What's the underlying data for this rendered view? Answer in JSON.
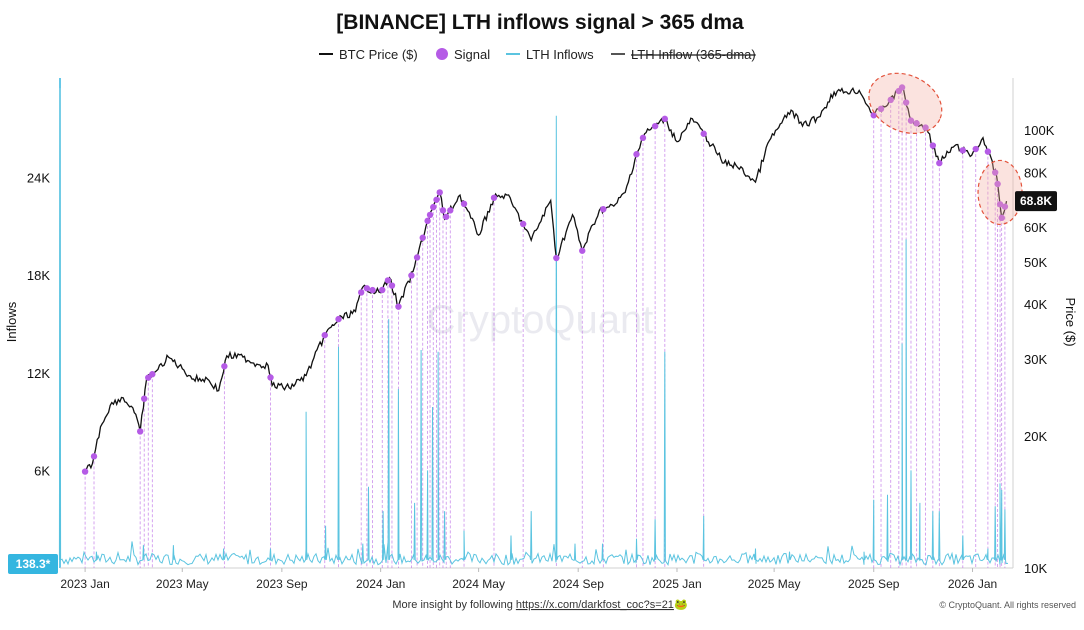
{
  "chart_data": {
    "type": "line",
    "title": "[BINANCE] LTH inflows signal > 365 dma",
    "legend": [
      {
        "name": "BTC Price ($)",
        "color": "#111111",
        "marker": "line"
      },
      {
        "name": "Signal",
        "color": "#b55be6",
        "marker": "dot"
      },
      {
        "name": "LTH Inflows",
        "color": "#5bc4e0",
        "marker": "line"
      },
      {
        "name": "LTH Inflow (365-dma)",
        "color": "#555555",
        "marker": "line",
        "hidden": true
      }
    ],
    "legend_position": "top-center",
    "x_ticks": [
      "2023 Jan",
      "2023 May",
      "2023 Sep",
      "2024 Jan",
      "2024 May",
      "2024 Sep",
      "2025 Jan",
      "2025 May",
      "2025 Sep",
      "2026 Jan"
    ],
    "x_range": [
      "2022-12-01",
      "2026-02-20"
    ],
    "y_left": {
      "label": "Inflows",
      "ticks": [
        "6K",
        "12K",
        "18K",
        "24K"
      ],
      "range": [
        0,
        30000
      ]
    },
    "y_right": {
      "label": "Price ($)",
      "scale": "log",
      "ticks": [
        "10K",
        "20K",
        "30K",
        "40K",
        "50K",
        "60K",
        "80K",
        "90K",
        "100K"
      ],
      "range": [
        10000,
        130000
      ]
    },
    "current_left_badge": "138.3*",
    "current_price_badge": "68.8K",
    "grid": false,
    "series": [
      {
        "name": "BTC Price ($)",
        "points": [
          [
            "2023-01-01",
            16600
          ],
          [
            "2023-01-10",
            17300
          ],
          [
            "2023-01-20",
            21000
          ],
          [
            "2023-02-01",
            23500
          ],
          [
            "2023-02-15",
            24500
          ],
          [
            "2023-03-01",
            23200
          ],
          [
            "2023-03-10",
            20500
          ],
          [
            "2023-03-18",
            27000
          ],
          [
            "2023-04-01",
            28400
          ],
          [
            "2023-04-14",
            30300
          ],
          [
            "2023-05-01",
            28500
          ],
          [
            "2023-05-15",
            27000
          ],
          [
            "2023-06-01",
            27000
          ],
          [
            "2023-06-15",
            25400
          ],
          [
            "2023-06-25",
            30500
          ],
          [
            "2023-07-15",
            30300
          ],
          [
            "2023-08-01",
            29200
          ],
          [
            "2023-08-15",
            29000
          ],
          [
            "2023-08-20",
            26100
          ],
          [
            "2023-09-10",
            25800
          ],
          [
            "2023-10-01",
            27500
          ],
          [
            "2023-10-24",
            34000
          ],
          [
            "2023-11-10",
            37000
          ],
          [
            "2023-12-01",
            38500
          ],
          [
            "2023-12-10",
            43800
          ],
          [
            "2024-01-01",
            42500
          ],
          [
            "2024-01-12",
            46000
          ],
          [
            "2024-01-23",
            39500
          ],
          [
            "2024-02-10",
            47500
          ],
          [
            "2024-02-28",
            62000
          ],
          [
            "2024-03-05",
            66000
          ],
          [
            "2024-03-14",
            72000
          ],
          [
            "2024-03-20",
            62500
          ],
          [
            "2024-04-08",
            71000
          ],
          [
            "2024-05-01",
            57500
          ],
          [
            "2024-05-20",
            70000
          ],
          [
            "2024-06-05",
            71000
          ],
          [
            "2024-06-25",
            61000
          ],
          [
            "2024-07-05",
            56000
          ],
          [
            "2024-07-29",
            69000
          ],
          [
            "2024-08-05",
            51000
          ],
          [
            "2024-08-25",
            64000
          ],
          [
            "2024-09-06",
            53000
          ],
          [
            "2024-09-27",
            65500
          ],
          [
            "2024-10-15",
            67000
          ],
          [
            "2024-10-29",
            72000
          ],
          [
            "2024-11-12",
            88000
          ],
          [
            "2024-11-22",
            98000
          ],
          [
            "2024-12-05",
            102000
          ],
          [
            "2024-12-17",
            106000
          ],
          [
            "2025-01-01",
            94000
          ],
          [
            "2025-01-20",
            106000
          ],
          [
            "2025-02-03",
            98000
          ],
          [
            "2025-02-28",
            84000
          ],
          [
            "2025-03-15",
            83000
          ],
          [
            "2025-04-08",
            76000
          ],
          [
            "2025-04-25",
            94500
          ],
          [
            "2025-05-22",
            111000
          ],
          [
            "2025-06-05",
            102000
          ],
          [
            "2025-06-25",
            107000
          ],
          [
            "2025-07-14",
            122000
          ],
          [
            "2025-08-14",
            123000
          ],
          [
            "2025-09-01",
            108000
          ],
          [
            "2025-09-20",
            116000
          ],
          [
            "2025-10-06",
            125000
          ],
          [
            "2025-10-17",
            105000
          ],
          [
            "2025-11-05",
            101000
          ],
          [
            "2025-11-21",
            84000
          ],
          [
            "2025-12-10",
            92000
          ],
          [
            "2025-12-31",
            87500
          ],
          [
            "2026-01-14",
            96000
          ],
          [
            "2026-01-31",
            78000
          ],
          [
            "2026-02-06",
            63000
          ],
          [
            "2026-02-12",
            68800
          ]
        ]
      },
      {
        "name": "Signal",
        "dates": [
          "2023-01-01",
          "2023-01-12",
          "2023-03-10",
          "2023-03-15",
          "2023-03-20",
          "2023-03-25",
          "2023-06-22",
          "2023-08-18",
          "2023-10-24",
          "2023-11-10",
          "2023-12-08",
          "2023-12-15",
          "2023-12-22",
          "2024-01-03",
          "2024-01-10",
          "2024-01-15",
          "2024-01-23",
          "2024-02-08",
          "2024-02-15",
          "2024-02-22",
          "2024-02-28",
          "2024-03-02",
          "2024-03-06",
          "2024-03-10",
          "2024-03-14",
          "2024-03-18",
          "2024-03-22",
          "2024-03-27",
          "2024-04-13",
          "2024-05-20",
          "2024-06-25",
          "2024-08-05",
          "2024-09-06",
          "2024-10-02",
          "2024-11-12",
          "2024-11-20",
          "2024-12-05",
          "2024-12-17",
          "2025-02-03",
          "2025-09-01",
          "2025-09-10",
          "2025-09-22",
          "2025-10-02",
          "2025-10-06",
          "2025-10-11",
          "2025-10-17",
          "2025-10-24",
          "2025-11-04",
          "2025-11-13",
          "2025-11-21",
          "2025-12-20",
          "2026-01-05",
          "2026-01-20",
          "2026-01-29",
          "2026-02-01",
          "2026-02-04",
          "2026-02-06",
          "2026-02-10"
        ]
      },
      {
        "name": "LTH Inflows",
        "baseline": 500,
        "spikes": [
          [
            "2022-12-01",
            29500
          ],
          [
            "2023-01-15",
            1000
          ],
          [
            "2023-03-14",
            1400
          ],
          [
            "2023-04-20",
            1400
          ],
          [
            "2023-06-21",
            1200
          ],
          [
            "2023-08-18",
            1200
          ],
          [
            "2023-10-01",
            9600
          ],
          [
            "2023-10-25",
            2600
          ],
          [
            "2023-11-10",
            13600
          ],
          [
            "2023-12-10",
            1500
          ],
          [
            "2023-12-17",
            5000
          ],
          [
            "2024-01-04",
            3500
          ],
          [
            "2024-01-11",
            15300
          ],
          [
            "2024-01-23",
            11000
          ],
          [
            "2024-02-12",
            4000
          ],
          [
            "2024-02-20",
            13400
          ],
          [
            "2024-02-28",
            6000
          ],
          [
            "2024-03-05",
            9900
          ],
          [
            "2024-03-12",
            13300
          ],
          [
            "2024-03-20",
            3500
          ],
          [
            "2024-04-13",
            2300
          ],
          [
            "2024-06-10",
            2000
          ],
          [
            "2024-07-05",
            3500
          ],
          [
            "2024-08-05",
            27800
          ],
          [
            "2024-08-28",
            1500
          ],
          [
            "2024-10-01",
            1500
          ],
          [
            "2024-11-12",
            1800
          ],
          [
            "2024-12-05",
            3000
          ],
          [
            "2024-12-17",
            13300
          ],
          [
            "2025-02-03",
            3200
          ],
          [
            "2025-04-08",
            1200
          ],
          [
            "2025-05-20",
            1000
          ],
          [
            "2025-08-20",
            1000
          ],
          [
            "2025-09-01",
            4200
          ],
          [
            "2025-09-18",
            4500
          ],
          [
            "2025-10-06",
            13800
          ],
          [
            "2025-10-11",
            20200
          ],
          [
            "2025-10-17",
            6000
          ],
          [
            "2025-10-28",
            4000
          ],
          [
            "2025-11-13",
            3500
          ],
          [
            "2025-11-21",
            3500
          ],
          [
            "2025-12-20",
            2000
          ],
          [
            "2026-01-20",
            1200
          ],
          [
            "2026-01-29",
            3800
          ],
          [
            "2026-02-04",
            5200
          ],
          [
            "2026-02-06",
            4800
          ],
          [
            "2026-02-10",
            3600
          ]
        ]
      }
    ],
    "annotations": [
      {
        "type": "ellipse",
        "label": "",
        "center_date": "2025-10-10",
        "center_price": 115000
      },
      {
        "type": "ellipse",
        "label": "",
        "center_date": "2026-02-04",
        "center_price": 72000
      }
    ]
  },
  "watermark": "CryptoQuant",
  "footer": {
    "insight_text": "More insight by following ",
    "link": "https://x.com/darkfost_coc?s=21",
    "emoji": "🐸",
    "copyright": "© CryptoQuant. All rights reserved"
  }
}
